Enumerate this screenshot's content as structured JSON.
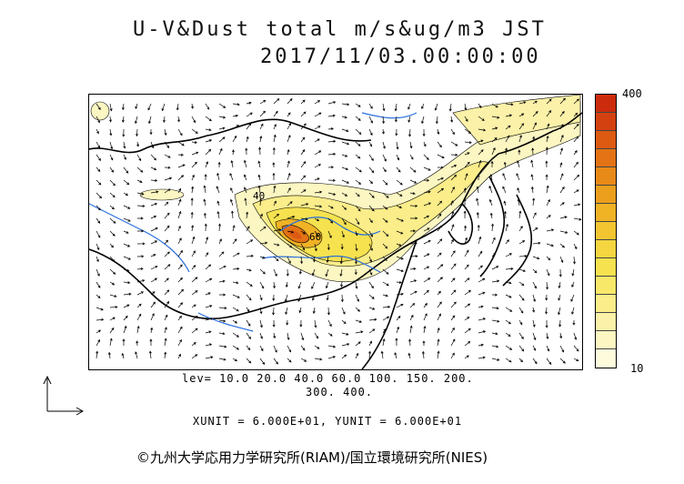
{
  "title": {
    "line1": "U-V&Dust total m/s&ug/m3 JST",
    "line2": "2017/11/03.00:00:00"
  },
  "colorbar": {
    "max_label": "400",
    "min_label": "10",
    "colors": [
      "#fdfbdc",
      "#fcf6c2",
      "#fbf1a8",
      "#faed8a",
      "#f8e86a",
      "#f6e24f",
      "#f5d640",
      "#f2c531",
      "#f0b326",
      "#ec9f1d",
      "#e88a18",
      "#e37314",
      "#dd5a12",
      "#d44110",
      "#cc2c0d"
    ]
  },
  "contour_info": {
    "levels_line1": "lev= 10.0 20.0 40.0 60.0 100. 150. 200.",
    "levels_line2": "300. 400."
  },
  "map_labels": {
    "label_40": "40",
    "label_60": "60"
  },
  "unit_text": "XUNIT = 6.000E+01, YUNIT = 6.000E+01",
  "credit": "©九州大学応用力学研究所(RIAM)/国立環境研究所(NIES)"
}
